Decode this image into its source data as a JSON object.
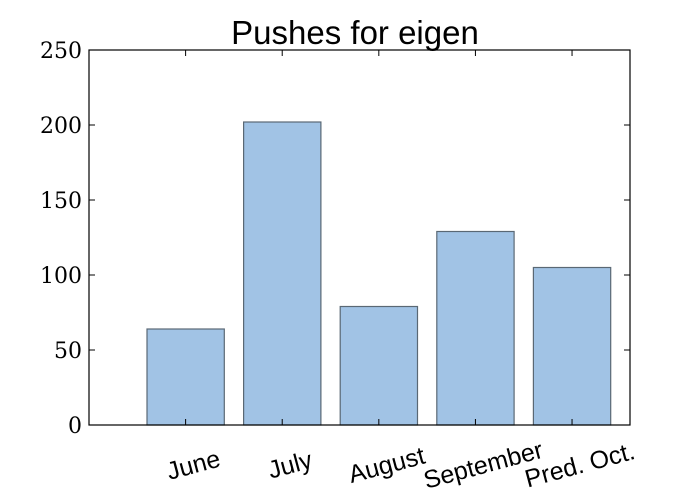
{
  "chart_data": {
    "type": "bar",
    "title": "Pushes for eigen",
    "xlabel": "",
    "ylabel": "",
    "categories": [
      "June",
      "July",
      "August",
      "September",
      "Pred. Oct."
    ],
    "values": [
      64,
      202,
      79,
      129,
      105
    ],
    "ylim": [
      0,
      250
    ],
    "yticks": [
      0,
      50,
      100,
      150,
      200,
      250
    ],
    "grid": false,
    "legend": "none",
    "bar_color": "#a1c3e5",
    "bar_edge_color": "#5a6874"
  }
}
